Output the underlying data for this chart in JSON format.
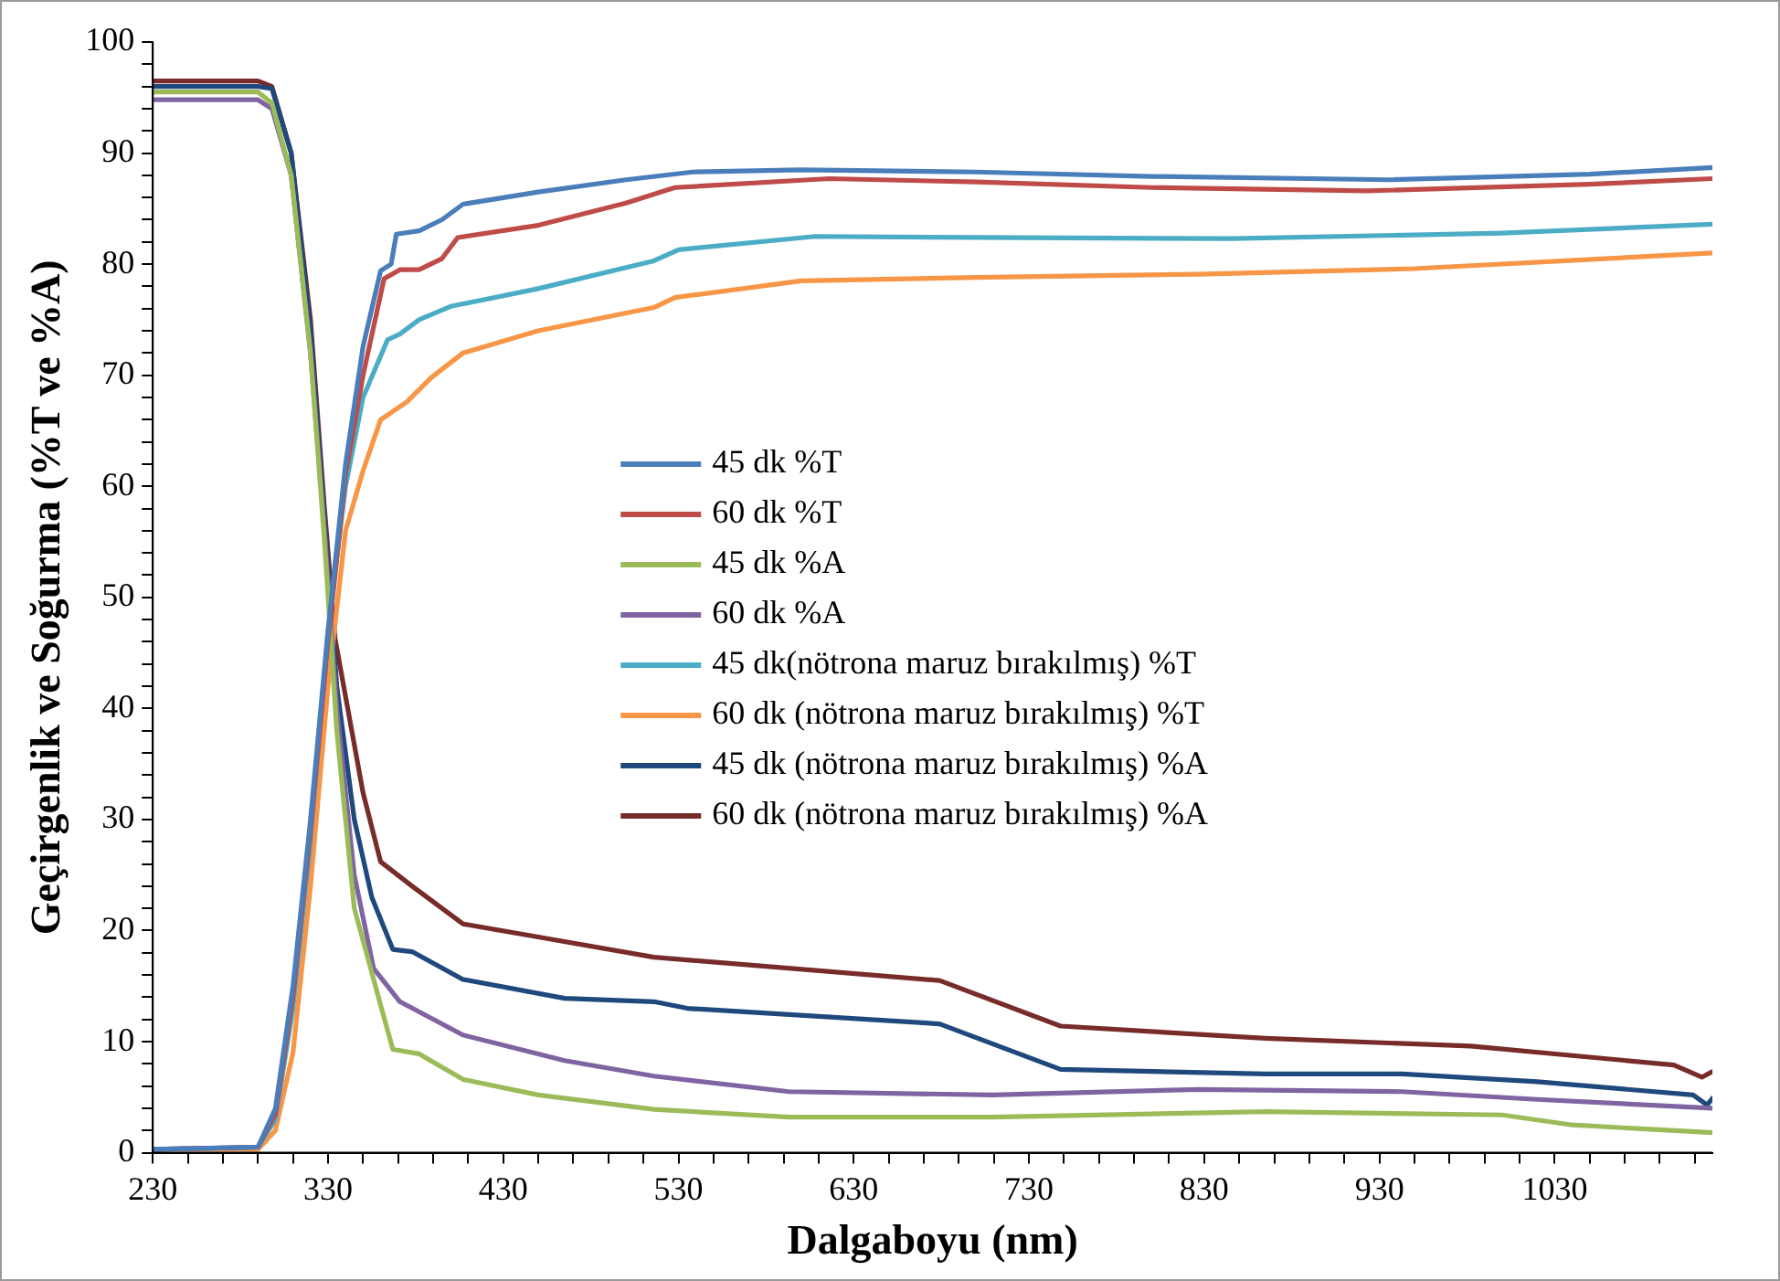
{
  "chart_data": {
    "type": "line",
    "xlabel": "Dalgaboyu (nm)",
    "ylabel": "Geçirgenlik ve Soğurma (%T ve %A)",
    "xlim": [
      230,
      1120
    ],
    "ylim": [
      0,
      100
    ],
    "xticks": [
      230,
      {
        "value": 250,
        "label": null
      },
      {
        "value": 270,
        "label": null
      },
      {
        "value": 290,
        "label": null
      },
      {
        "value": 310,
        "label": null
      },
      330,
      {
        "value": 350,
        "label": null
      },
      {
        "value": 370,
        "label": null
      },
      {
        "value": 390,
        "label": null
      },
      {
        "value": 410,
        "label": null
      },
      430,
      {
        "value": 450,
        "label": null
      },
      {
        "value": 470,
        "label": null
      },
      {
        "value": 490,
        "label": null
      },
      {
        "value": 510,
        "label": null
      },
      530,
      {
        "value": 550,
        "label": null
      },
      {
        "value": 570,
        "label": null
      },
      {
        "value": 590,
        "label": null
      },
      {
        "value": 610,
        "label": null
      },
      630,
      {
        "value": 650,
        "label": null
      },
      {
        "value": 670,
        "label": null
      },
      {
        "value": 690,
        "label": null
      },
      {
        "value": 710,
        "label": null
      },
      730,
      {
        "value": 750,
        "label": null
      },
      {
        "value": 770,
        "label": null
      },
      {
        "value": 790,
        "label": null
      },
      {
        "value": 810,
        "label": null
      },
      830,
      {
        "value": 850,
        "label": null
      },
      {
        "value": 870,
        "label": null
      },
      {
        "value": 890,
        "label": null
      },
      {
        "value": 910,
        "label": null
      },
      930,
      {
        "value": 950,
        "label": null
      },
      {
        "value": 970,
        "label": null
      },
      {
        "value": 990,
        "label": null
      },
      {
        "value": 1010,
        "label": null
      },
      1030,
      {
        "value": 1050,
        "label": null
      },
      {
        "value": 1070,
        "label": null
      },
      {
        "value": 1090,
        "label": null
      },
      {
        "value": 1110,
        "label": null
      }
    ],
    "yticks": [
      0,
      {
        "value": 2,
        "label": null
      },
      {
        "value": 4,
        "label": null
      },
      {
        "value": 6,
        "label": null
      },
      {
        "value": 8,
        "label": null
      },
      10,
      {
        "value": 12,
        "label": null
      },
      {
        "value": 14,
        "label": null
      },
      {
        "value": 16,
        "label": null
      },
      {
        "value": 18,
        "label": null
      },
      20,
      {
        "value": 22,
        "label": null
      },
      {
        "value": 24,
        "label": null
      },
      {
        "value": 26,
        "label": null
      },
      {
        "value": 28,
        "label": null
      },
      30,
      {
        "value": 32,
        "label": null
      },
      {
        "value": 34,
        "label": null
      },
      {
        "value": 36,
        "label": null
      },
      {
        "value": 38,
        "label": null
      },
      40,
      {
        "value": 42,
        "label": null
      },
      {
        "value": 44,
        "label": null
      },
      {
        "value": 46,
        "label": null
      },
      {
        "value": 48,
        "label": null
      },
      50,
      {
        "value": 52,
        "label": null
      },
      {
        "value": 54,
        "label": null
      },
      {
        "value": 56,
        "label": null
      },
      {
        "value": 58,
        "label": null
      },
      60,
      {
        "value": 62,
        "label": null
      },
      {
        "value": 64,
        "label": null
      },
      {
        "value": 66,
        "label": null
      },
      {
        "value": 68,
        "label": null
      },
      70,
      {
        "value": 72,
        "label": null
      },
      {
        "value": 74,
        "label": null
      },
      {
        "value": 76,
        "label": null
      },
      {
        "value": 78,
        "label": null
      },
      80,
      {
        "value": 82,
        "label": null
      },
      {
        "value": 84,
        "label": null
      },
      {
        "value": 86,
        "label": null
      },
      {
        "value": 88,
        "label": null
      },
      90,
      {
        "value": 92,
        "label": null
      },
      {
        "value": 94,
        "label": null
      },
      {
        "value": 96,
        "label": null
      },
      {
        "value": 98,
        "label": null
      },
      100
    ],
    "grid": false,
    "legend": "center",
    "marker": "none",
    "line_style": "solid",
    "series": [
      {
        "name": "45 dk %T",
        "color": "#4a7ebb",
        "x": [
          230,
          290,
          300,
          310,
          320,
          330,
          340,
          350,
          360,
          366,
          369,
          382,
          395,
          407,
          450,
          500,
          538,
          600,
          700,
          800,
          935,
          1050,
          1120
        ],
        "values": [
          0.3,
          0.5,
          4,
          15,
          30,
          47,
          62,
          72.6,
          79.4,
          80,
          82.7,
          83,
          84,
          85.4,
          86.5,
          87.6,
          88.3,
          88.5,
          88.3,
          87.9,
          87.6,
          88.1,
          88.7
        ]
      },
      {
        "name": "60 dk %T",
        "color": "#be4b48",
        "x": [
          230,
          290,
          300,
          310,
          320,
          330,
          340,
          350,
          362,
          371,
          382,
          395,
          404,
          450,
          500,
          528,
          616,
          700,
          800,
          923,
          1050,
          1120
        ],
        "values": [
          0.3,
          0.5,
          3.5,
          14,
          29,
          46,
          61,
          70,
          78.7,
          79.5,
          79.5,
          80.5,
          82.4,
          83.5,
          85.5,
          86.9,
          87.7,
          87.4,
          86.9,
          86.6,
          87.2,
          87.7
        ]
      },
      {
        "name": "45 dk %A",
        "color": "#9bbb59",
        "x": [
          230,
          290,
          298,
          309,
          320,
          328,
          335,
          345,
          360,
          367,
          382,
          407,
          450,
          516,
          593,
          709,
          865,
          1000,
          1040,
          1120
        ],
        "values": [
          95.5,
          95.5,
          94.5,
          88,
          72,
          55,
          38,
          22,
          13.3,
          9.3,
          8.9,
          6.6,
          5.2,
          3.9,
          3.2,
          3.2,
          3.7,
          3.4,
          2.5,
          1.8
        ]
      },
      {
        "name": "60 dk %A",
        "color": "#8064a2",
        "x": [
          230,
          290,
          298,
          309,
          320,
          328,
          335,
          345,
          356,
          371,
          407,
          465,
          516,
          593,
          709,
          827,
          943,
          1020,
          1120
        ],
        "values": [
          94.8,
          94.8,
          94,
          88,
          72,
          56,
          40,
          25,
          16.6,
          13.6,
          10.6,
          8.3,
          6.9,
          5.5,
          5.2,
          5.7,
          5.5,
          4.8,
          4.0
        ]
      },
      {
        "name": "45 dk(nötrona maruz bırakılmış) %T",
        "color": "#4bacc6",
        "x": [
          230,
          290,
          300,
          310,
          320,
          330,
          340,
          350,
          364,
          371,
          382,
          400,
          450,
          516,
          530,
          608,
          700,
          846,
          1000,
          1120
        ],
        "values": [
          0.3,
          0.5,
          3,
          13,
          28,
          47,
          60,
          68,
          73.2,
          73.7,
          75,
          76.2,
          77.8,
          80.3,
          81.3,
          82.5,
          82.4,
          82.3,
          82.8,
          83.6
        ]
      },
      {
        "name": "60 dk (nötrona maruz bırakılmış) %T",
        "color": "#f79646",
        "x": [
          230,
          290,
          300,
          310,
          320,
          330,
          340,
          350,
          360,
          375,
          389,
          407,
          450,
          516,
          528,
          600,
          700,
          827,
          950,
          1120
        ],
        "values": [
          0.3,
          0.3,
          2,
          9,
          24,
          42,
          56,
          61.4,
          66,
          67.6,
          69.8,
          72,
          74,
          76.1,
          77,
          78.5,
          78.8,
          79.1,
          79.6,
          81.0
        ]
      },
      {
        "name": "45 dk (nötrona maruz bırakılmış) %A",
        "color": "#1f497d",
        "x": [
          230,
          290,
          298,
          309,
          320,
          328,
          335,
          345,
          355,
          367,
          378,
          407,
          465,
          516,
          535,
          679,
          748,
          865,
          943,
          1020,
          1109,
          1117,
          1120
        ],
        "values": [
          96,
          96,
          95.8,
          90,
          74,
          57,
          42,
          30,
          23,
          18.3,
          18.1,
          15.6,
          13.9,
          13.6,
          13,
          11.6,
          7.5,
          7.1,
          7.1,
          6.4,
          5.2,
          4.3,
          4.9
        ]
      },
      {
        "name": "60 dk (nötrona maruz bırakılmış) %A",
        "color": "#772c2a",
        "x": [
          230,
          290,
          298,
          309,
          320,
          328,
          334,
          350,
          360,
          378,
          407,
          447,
          516,
          679,
          748,
          865,
          982,
          1098,
          1114,
          1120
        ],
        "values": [
          96.5,
          96.5,
          96,
          90,
          75,
          58,
          46.3,
          32.4,
          26.2,
          24,
          20.6,
          19.5,
          17.6,
          15.5,
          11.4,
          10.3,
          9.6,
          7.9,
          6.8,
          7.3
        ]
      }
    ]
  }
}
